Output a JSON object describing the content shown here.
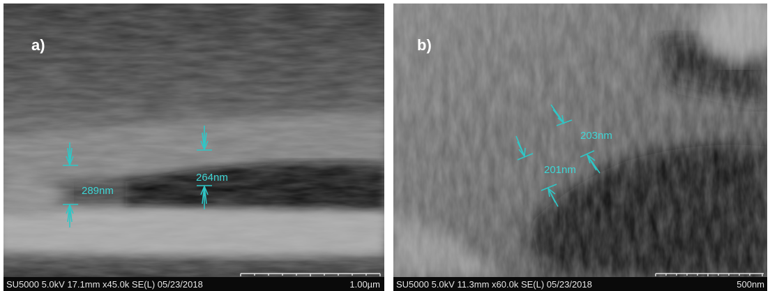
{
  "panels": [
    {
      "label": "a)",
      "measurements": [
        "289nm",
        "264nm"
      ],
      "footer": "SU5000 5.0kV 17.1mm x45.0k SE(L) 05/23/2018",
      "scale_bar": "1.00µm"
    },
    {
      "label": "b)",
      "measurements": [
        "203nm",
        "201nm"
      ],
      "footer": "SU5000 5.0kV 11.3mm x60.0k SE(L) 05/23/2018",
      "scale_bar": "500nm"
    }
  ]
}
